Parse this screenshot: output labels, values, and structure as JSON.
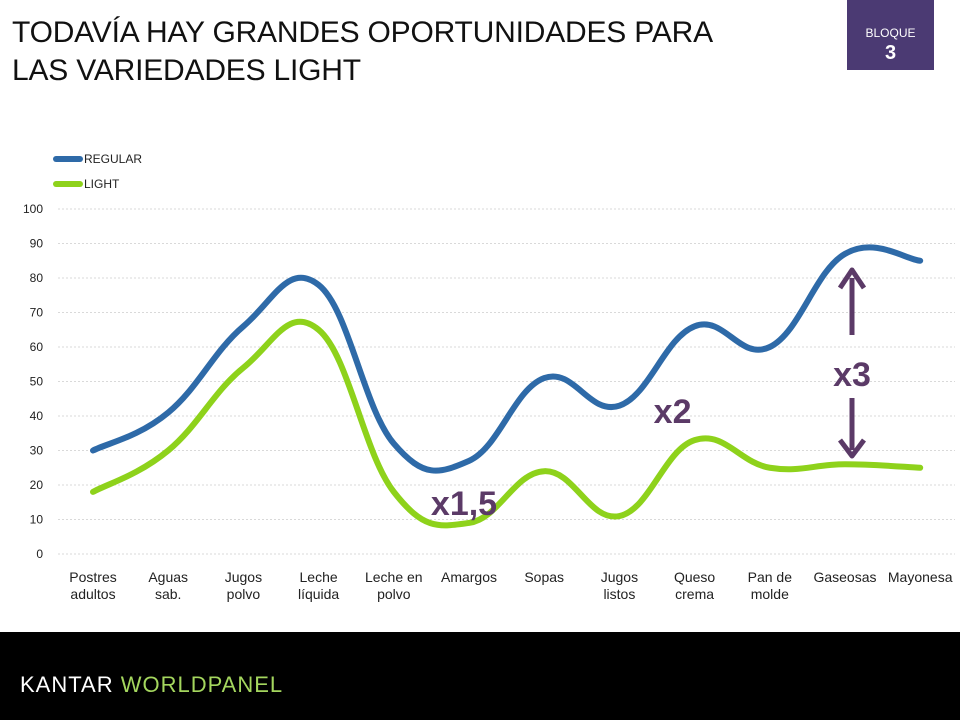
{
  "title_line1": "TODAVÍA HAY GRANDES OPORTUNIDADES PARA",
  "title_line2": "LAS VARIEDADES LIGHT",
  "badge": {
    "label": "BLOQUE",
    "number": "3"
  },
  "footer": {
    "brand_part1": "KANTAR",
    "brand_part2": "WORLDPANEL"
  },
  "chart_data": {
    "type": "line",
    "categories": [
      [
        "Postres",
        "adultos"
      ],
      [
        "Aguas",
        "sab."
      ],
      [
        "Jugos",
        "polvo"
      ],
      [
        "Leche",
        "líquida"
      ],
      [
        "Leche en",
        "polvo"
      ],
      [
        "Amargos"
      ],
      [
        "Sopas"
      ],
      [
        "Jugos",
        "listos"
      ],
      [
        "Queso",
        "crema"
      ],
      [
        "Pan de",
        "molde"
      ],
      [
        "Gaseosas"
      ],
      [
        "Mayonesa"
      ]
    ],
    "series": [
      {
        "name": "REGULAR",
        "color": "#2e6aa8",
        "values": [
          30,
          41,
          66,
          78,
          32,
          27,
          51,
          43,
          66,
          60,
          87,
          85
        ]
      },
      {
        "name": "LIGHT",
        "color": "#8ed21b",
        "values": [
          18,
          30,
          54,
          65,
          18,
          9,
          24,
          11,
          33,
          25,
          26,
          25
        ]
      }
    ],
    "ylim": [
      0,
      100
    ],
    "yticks": [
      0,
      10,
      20,
      30,
      40,
      50,
      60,
      70,
      80,
      90,
      100
    ],
    "grid": true,
    "legend": "top-left",
    "annotations": [
      {
        "text": "x1,5",
        "category_index": 5
      },
      {
        "text": "x2",
        "category_index": 8
      },
      {
        "text": "x3",
        "category_index": 10
      }
    ],
    "annotation_color": "#5b3a67"
  }
}
